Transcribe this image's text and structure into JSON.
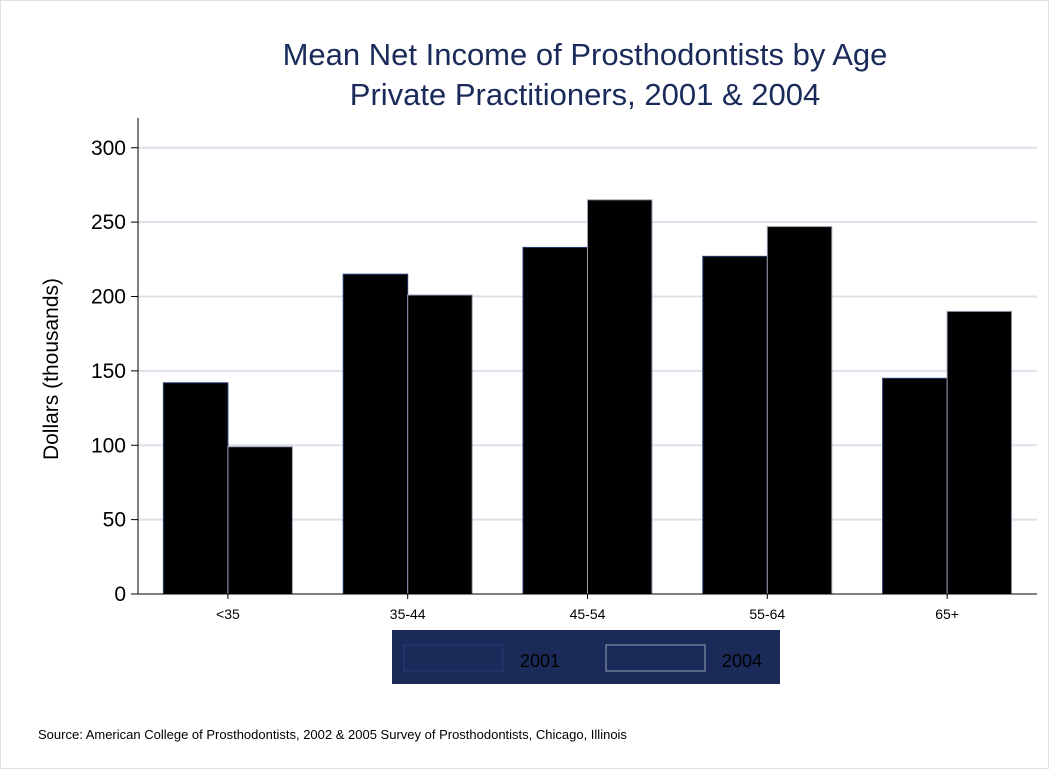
{
  "chart_data": {
    "type": "bar",
    "title": "Mean Net Income of Prosthodontists by Age",
    "subtitle": "Private Practitioners, 2001 & 2004",
    "ylabel": "Dollars (thousands)",
    "xlabel": "",
    "categories": [
      "<35",
      "35-44",
      "45-54",
      "55-64",
      "65+"
    ],
    "series": [
      {
        "name": "2001",
        "values": [
          142,
          215,
          233,
          227,
          145
        ]
      },
      {
        "name": "2004",
        "values": [
          99,
          201,
          265,
          247,
          190
        ]
      }
    ],
    "ylim": [
      0,
      320
    ],
    "yticks": [
      0,
      50,
      100,
      150,
      200,
      250,
      300
    ],
    "grid": true,
    "legend_position": "bottom-center",
    "source_note": "Source: American College of Prosthodontists, 2002 & 2005 Survey of Prosthodontists, Chicago, Illinois",
    "colors": {
      "bar_fill": "#000000",
      "bar_stroke_2001": "#2a3a70",
      "bar_stroke_2004": "#9aa0b0",
      "title": "#1a2b5a",
      "grid": "#dde1ea",
      "legend_background": "#1a2b5a"
    }
  }
}
